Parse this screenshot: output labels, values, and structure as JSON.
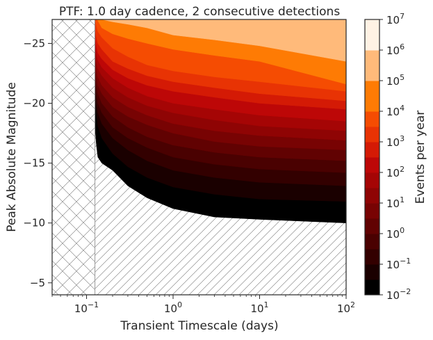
{
  "chart_data": {
    "type": "heatmap",
    "title": "PTF: 1.0 day cadence, 2 consecutive detections",
    "xlabel": "Transient Timescale (days)",
    "ylabel": "Peak Absolute Magnitude",
    "xscale": "log",
    "xlim": [
      0.04,
      100
    ],
    "ylim": [
      -4,
      -27
    ],
    "x_ticks": [
      {
        "value": 0.1,
        "base": "10",
        "exp": "−1"
      },
      {
        "value": 1,
        "base": "10",
        "exp": "0"
      },
      {
        "value": 10,
        "base": "10",
        "exp": "1"
      },
      {
        "value": 100,
        "base": "10",
        "exp": "2"
      }
    ],
    "y_ticks": [
      {
        "value": -25,
        "label": "−25"
      },
      {
        "value": -20,
        "label": "−20"
      },
      {
        "value": -15,
        "label": "−15"
      },
      {
        "value": -10,
        "label": "−10"
      },
      {
        "value": -5,
        "label": "−5"
      }
    ],
    "hatched_regions": [
      {
        "pattern": "crosshatch",
        "x_range": [
          0.04,
          0.125
        ]
      },
      {
        "pattern": "diagonal",
        "x_range": [
          0.125,
          100
        ],
        "region": "fainter than detection limit"
      }
    ],
    "colorbar": {
      "label": "Events per year",
      "scale": "log",
      "ticks": [
        {
          "base": "10",
          "exp": "−2"
        },
        {
          "base": "10",
          "exp": "−1"
        },
        {
          "base": "10",
          "exp": "0"
        },
        {
          "base": "10",
          "exp": "1"
        },
        {
          "base": "10",
          "exp": "2"
        },
        {
          "base": "10",
          "exp": "3"
        },
        {
          "base": "10",
          "exp": "4"
        },
        {
          "base": "10",
          "exp": "5"
        },
        {
          "base": "10",
          "exp": "6"
        },
        {
          "base": "10",
          "exp": "7"
        }
      ],
      "levels": [
        {
          "range": "1e-2 to 1e-1.5",
          "color": "#000000"
        },
        {
          "range": "1e-1.5 to 1e-1",
          "color": "#1a0000"
        },
        {
          "range": "1e-1 to 1e-0.5",
          "color": "#330000"
        },
        {
          "range": "1e-0.5 to 1e0",
          "color": "#4a0101"
        },
        {
          "range": "1e0 to 1e0.5",
          "color": "#610202"
        },
        {
          "range": "1e0.5 to 1e1",
          "color": "#780303"
        },
        {
          "range": "1e1 to 1e1.5",
          "color": "#8f0404"
        },
        {
          "range": "1e1.5 to 1e2",
          "color": "#a50505"
        },
        {
          "range": "1e2 to 1e2.5",
          "color": "#bd0707"
        },
        {
          "range": "1e2.5 to 1e3",
          "color": "#d41a05"
        },
        {
          "range": "1e3 to 1e3.5",
          "color": "#e83304"
        },
        {
          "range": "1e3.5 to 1e4",
          "color": "#f54c02"
        },
        {
          "range": "1e4 to 1e5",
          "color": "#fe7b04"
        },
        {
          "range": "1e5 to 1e6",
          "color": "#ffba7a"
        },
        {
          "range": "1e6 to 1e7",
          "color": "#fff2e4"
        }
      ]
    },
    "contour_boundaries": {
      "x": [
        0.125,
        0.13,
        0.135,
        0.15,
        0.2,
        0.3,
        0.5,
        1,
        3,
        10,
        100
      ],
      "comment": "peak magnitude at which expected events/yr cross each level, per timescale",
      "levels": [
        {
          "color": "#ffba7a",
          "mag": [
            -27,
            -27,
            -27,
            -27,
            -26.8,
            -26.6,
            -26.3,
            -25.7,
            -25.3,
            -24.8,
            -23.5
          ]
        },
        {
          "color": "#fe7b04",
          "mag": [
            -27,
            -27,
            -26.9,
            -26.3,
            -25.8,
            -25.4,
            -25.0,
            -24.5,
            -24.0,
            -23.5,
            -21.6
          ]
        },
        {
          "color": "#f54c02",
          "mag": [
            -27,
            -26.5,
            -26.0,
            -25.5,
            -24.6,
            -23.9,
            -23.2,
            -22.7,
            -22.2,
            -21.8,
            -21.0
          ]
        },
        {
          "color": "#e83304",
          "mag": [
            -26.2,
            -25.5,
            -25.0,
            -24.5,
            -23.5,
            -22.9,
            -22.3,
            -21.8,
            -21.3,
            -20.8,
            -20.2
          ]
        },
        {
          "color": "#d41a05",
          "mag": [
            -25.5,
            -24.8,
            -24.2,
            -23.7,
            -22.8,
            -22.1,
            -21.5,
            -21.0,
            -20.5,
            -20.0,
            -19.5
          ]
        },
        {
          "color": "#bd0707",
          "mag": [
            -25.0,
            -24.2,
            -23.6,
            -23.0,
            -22.1,
            -21.3,
            -20.6,
            -20.0,
            -19.5,
            -19.0,
            -18.5
          ]
        },
        {
          "color": "#a50505",
          "mag": [
            -24.4,
            -23.5,
            -22.9,
            -22.3,
            -21.3,
            -20.5,
            -19.8,
            -19.2,
            -18.6,
            -18.1,
            -17.7
          ]
        },
        {
          "color": "#8f0404",
          "mag": [
            -23.8,
            -22.9,
            -22.2,
            -21.5,
            -20.5,
            -19.7,
            -19.0,
            -18.3,
            -17.7,
            -17.3,
            -16.9
          ]
        },
        {
          "color": "#780303",
          "mag": [
            -23.1,
            -22.2,
            -21.5,
            -20.8,
            -19.7,
            -18.9,
            -18.2,
            -17.5,
            -16.8,
            -16.4,
            -16.1
          ]
        },
        {
          "color": "#610202",
          "mag": [
            -22.5,
            -21.5,
            -20.8,
            -20.0,
            -18.9,
            -18.0,
            -17.2,
            -16.5,
            -15.9,
            -15.5,
            -15.2
          ]
        },
        {
          "color": "#4a0101",
          "mag": [
            -21.8,
            -20.8,
            -20.0,
            -19.2,
            -18.0,
            -17.1,
            -16.3,
            -15.5,
            -14.9,
            -14.5,
            -14.2
          ]
        },
        {
          "color": "#330000",
          "mag": [
            -21.1,
            -20.0,
            -19.2,
            -18.3,
            -17.1,
            -16.1,
            -15.2,
            -14.4,
            -13.8,
            -13.4,
            -13.1
          ]
        },
        {
          "color": "#1a0000",
          "mag": [
            -20.3,
            -19.1,
            -18.1,
            -17.1,
            -15.8,
            -14.7,
            -13.8,
            -13.0,
            -12.4,
            -12.0,
            -11.8
          ]
        },
        {
          "color": "#000000",
          "mag": [
            -18.0,
            -16.5,
            -15.5,
            -15.0,
            -14.4,
            -13.1,
            -12.1,
            -11.2,
            -10.5,
            -10.3,
            -10.0
          ]
        }
      ]
    }
  }
}
